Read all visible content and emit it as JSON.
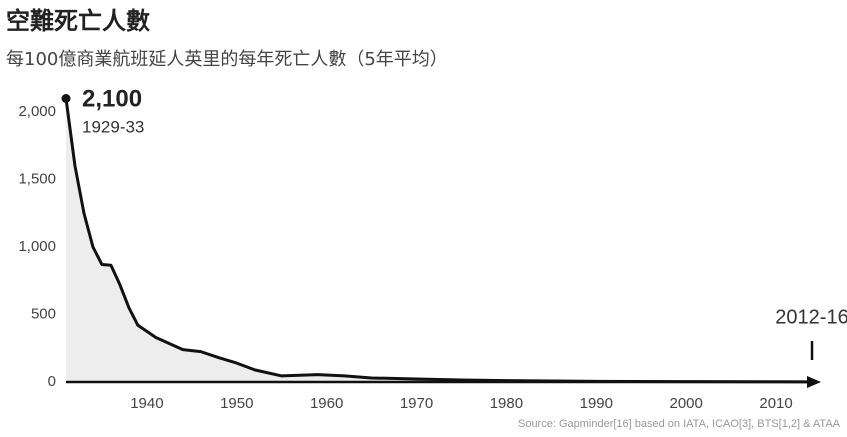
{
  "chart_data": {
    "type": "area",
    "title": "空難死亡人數",
    "subtitle": "每100億商業航班延人英里的每年死亡人數（5年平均）",
    "source": "Source: Gapminder[16] based on IATA, ICAO[3], BTS[1,2] & ATAA",
    "x": [
      1931,
      1932,
      1933,
      1934,
      1935,
      1936,
      1937,
      1938,
      1939,
      1941,
      1944,
      1946,
      1948,
      1950,
      1952,
      1955,
      1959,
      1962,
      1965,
      1970,
      1975,
      1980,
      1990,
      2000,
      2010,
      2014
    ],
    "series": [
      {
        "name": "死亡人數",
        "color": "#111111",
        "fill": "#ededed",
        "values": [
          2100,
          1600,
          1250,
          1000,
          870,
          865,
          720,
          550,
          420,
          330,
          240,
          225,
          180,
          140,
          90,
          45,
          55,
          45,
          30,
          22,
          15,
          10,
          5,
          3,
          2,
          1
        ]
      }
    ],
    "xlim": [
      1931,
      2015
    ],
    "ylim": [
      0,
      2100
    ],
    "xticks": [
      1940,
      1950,
      1960,
      1970,
      1980,
      1990,
      2000,
      2010
    ],
    "yticks": [
      0,
      500,
      {
        "value": 1000,
        "label": "1,000"
      },
      {
        "value": 1500,
        "label": "1,500"
      },
      {
        "value": 2000,
        "label": "2,000"
      }
    ],
    "annotations": [
      {
        "label": "2,100",
        "period": "1929-33",
        "x": 1931,
        "y": 2100
      },
      {
        "period": "2012-16",
        "x": 2014
      }
    ]
  }
}
